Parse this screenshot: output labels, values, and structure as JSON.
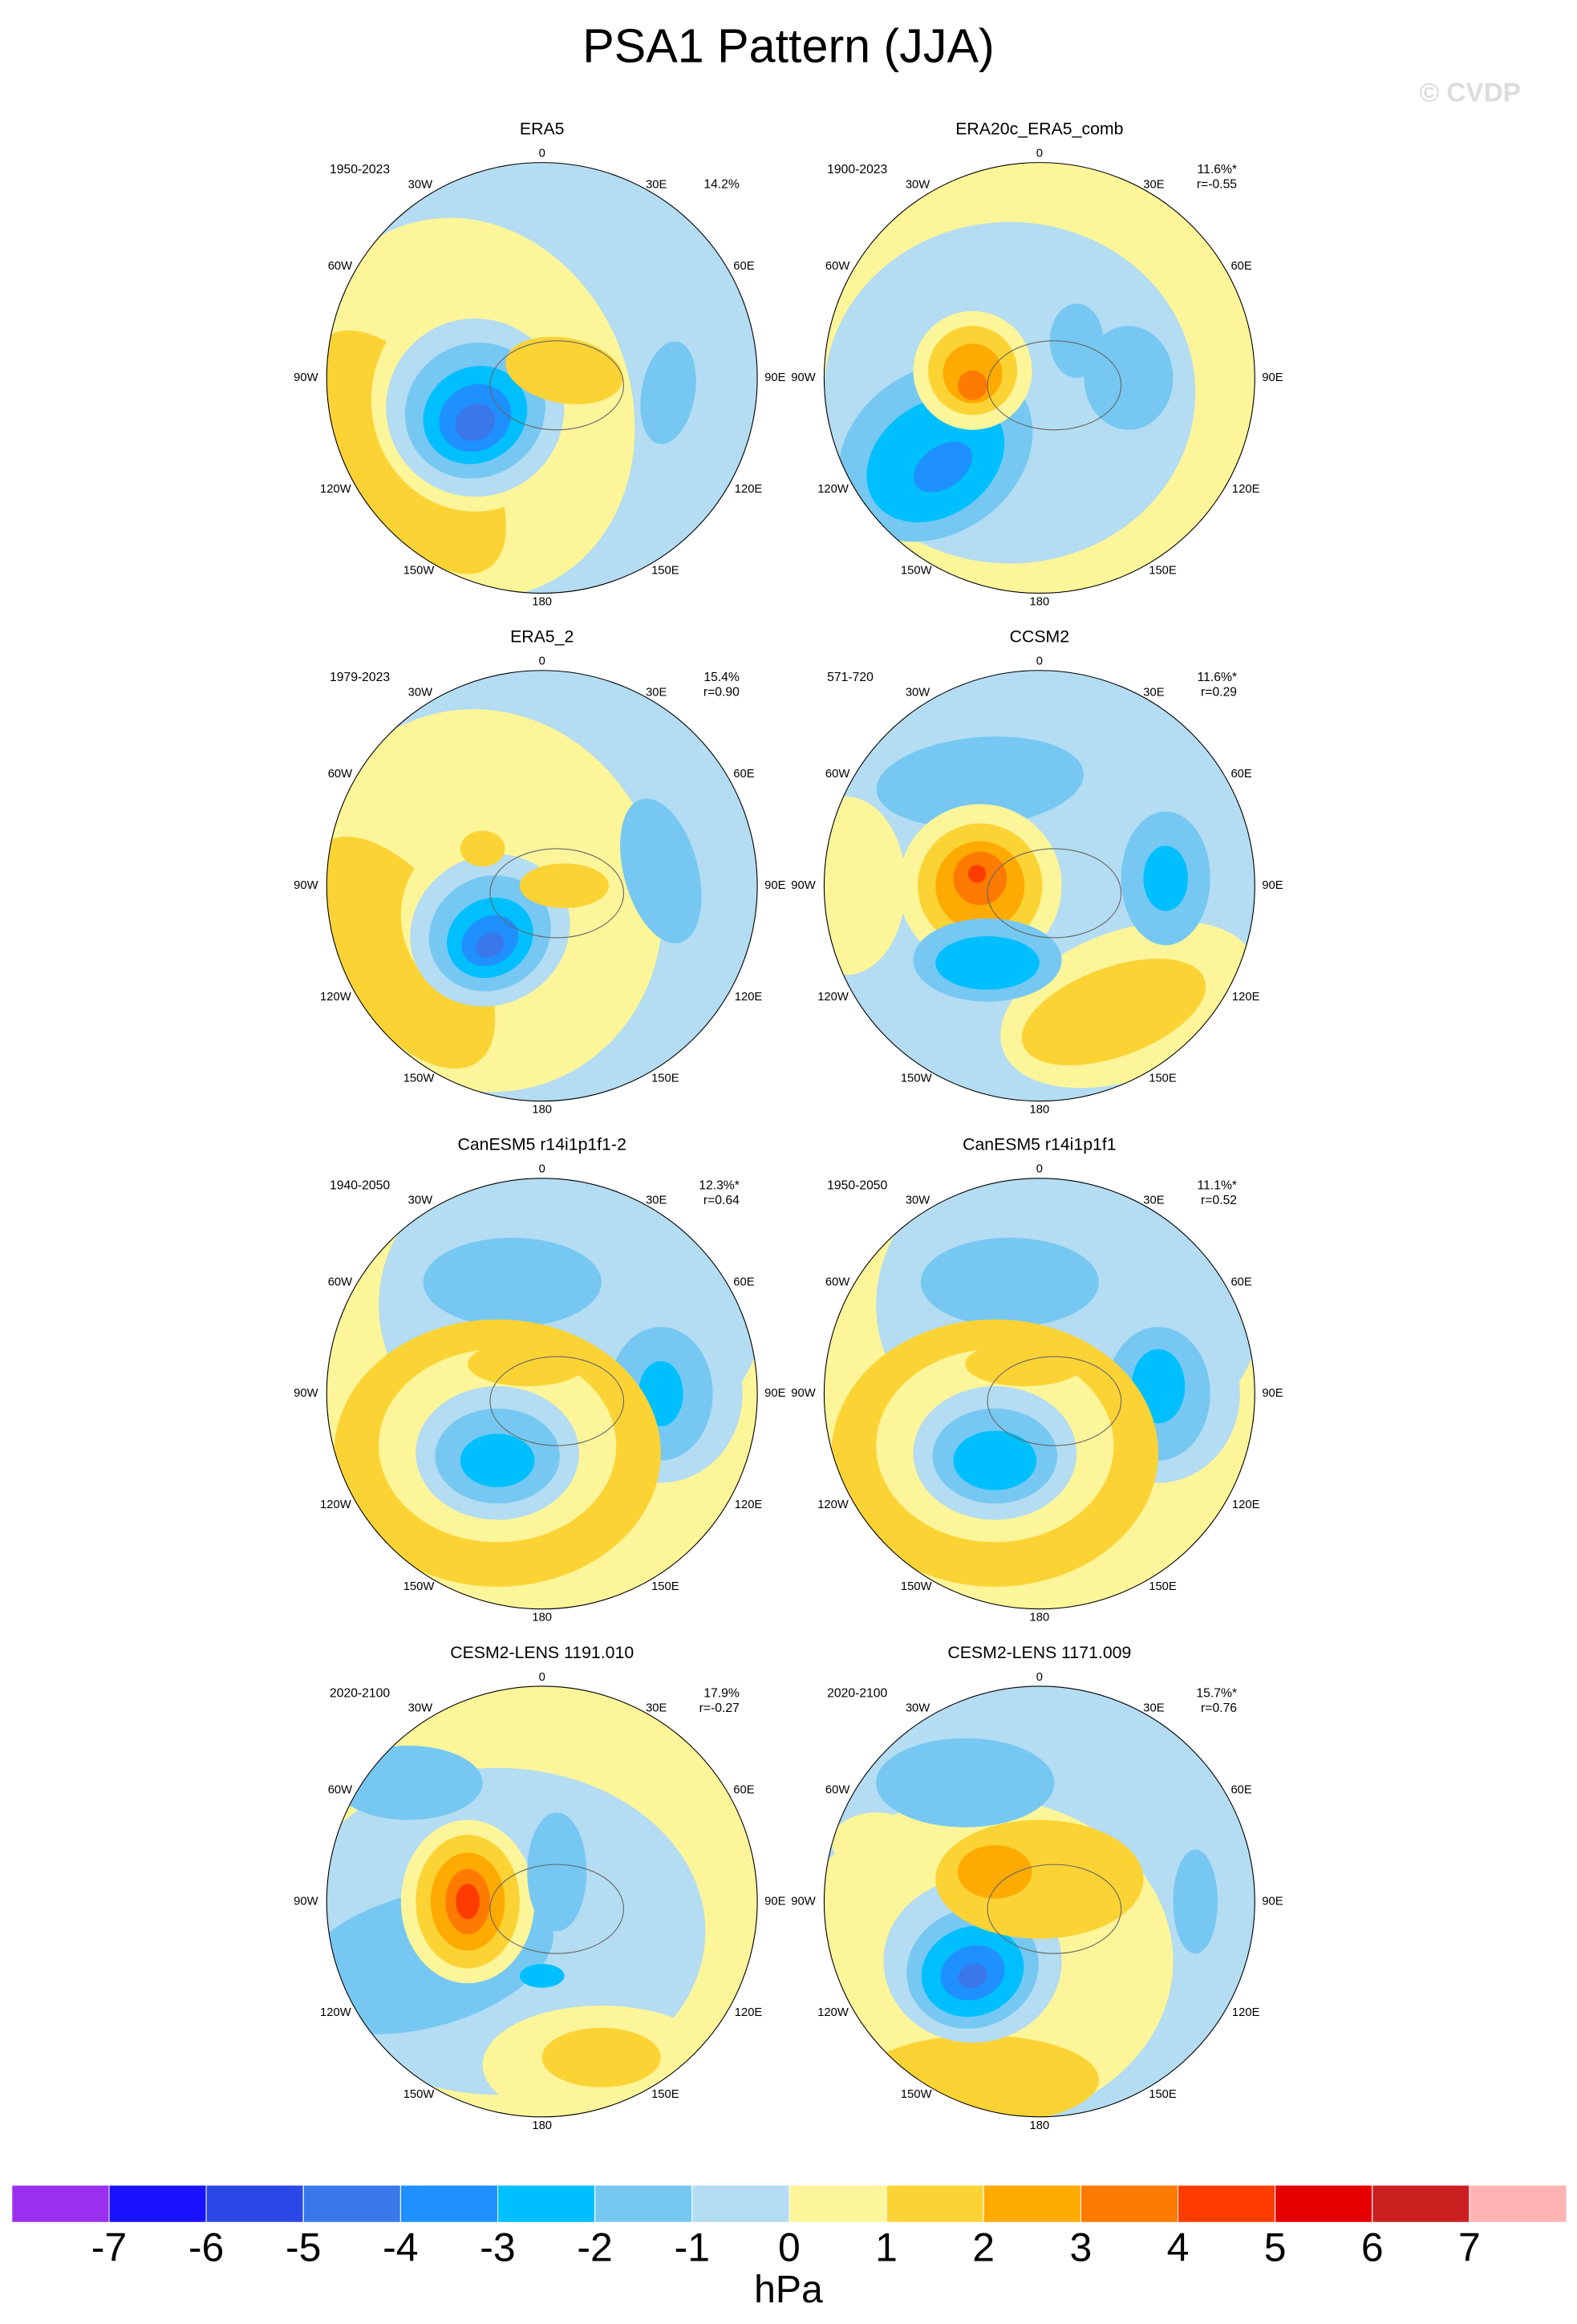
{
  "title": "PSA1 Pattern (JJA)",
  "watermark": "© CVDP",
  "longitude_labels": [
    "0",
    "30E",
    "60E",
    "90E",
    "120E",
    "150E",
    "180",
    "150W",
    "120W",
    "90W",
    "60W",
    "30W"
  ],
  "panels": [
    {
      "title": "ERA5",
      "period": "1950-2023",
      "variance": "14.2%"
    },
    {
      "title": "ERA20c_ERA5_comb",
      "period": "1900-2023",
      "variance": "11.6%*",
      "correlation": "r=-0.55"
    },
    {
      "title": "ERA5_2",
      "period": "1979-2023",
      "variance": "15.4%",
      "correlation": "r=0.90"
    },
    {
      "title": "CCSM2",
      "period": "571-720",
      "variance": "11.6%*",
      "correlation": "r=0.29"
    },
    {
      "title": "CanESM5 r14i1p1f1-2",
      "period": "1940-2050",
      "variance": "12.3%*",
      "correlation": "r=0.64"
    },
    {
      "title": "CanESM5 r14i1p1f1",
      "period": "1950-2050",
      "variance": "11.1%*",
      "correlation": "r=0.52"
    },
    {
      "title": "CESM2-LENS 1191.010",
      "period": "2020-2100",
      "variance": "17.9%",
      "correlation": "r=-0.27"
    },
    {
      "title": "CESM2-LENS 1171.009",
      "period": "2020-2100",
      "variance": "15.7%*",
      "correlation": "r=0.76"
    }
  ],
  "colorbar": {
    "ticks": [
      -7,
      -6,
      -5,
      -4,
      -3,
      -2,
      -1,
      0,
      1,
      2,
      3,
      4,
      5,
      6,
      7
    ],
    "colors": [
      "#9b2ff0",
      "#1a12ff",
      "#2b47e8",
      "#3a78ea",
      "#1e90ff",
      "#00bfff",
      "#76c8f2",
      "#b4dcf2",
      "#fcf59a",
      "#fcd335",
      "#ffaa00",
      "#ff7a00",
      "#ff3c00",
      "#e60000",
      "#cc2020",
      "#ffb4b4"
    ],
    "label": "hPa"
  }
}
